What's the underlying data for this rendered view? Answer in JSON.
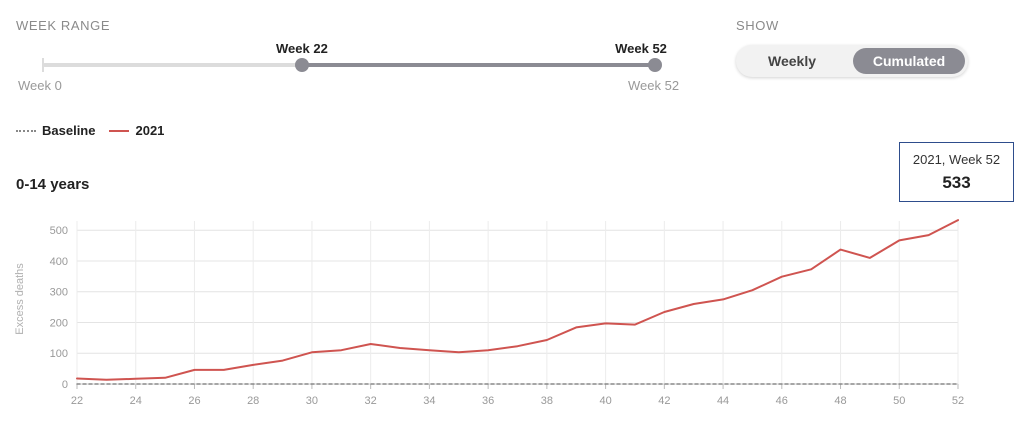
{
  "controls": {
    "week_range_label": "WEEK RANGE",
    "range_start_label": "Week 0",
    "range_end_label": "Week 52",
    "thumb_low_label": "Week 22",
    "thumb_high_label": "Week 52",
    "range_min": 0,
    "range_max": 52,
    "selected_low": 22,
    "selected_high": 52,
    "show_label": "SHOW",
    "toggle_options": [
      "Weekly",
      "Cumulated"
    ],
    "toggle_selected": "Cumulated"
  },
  "legend": {
    "items": [
      {
        "label": "Baseline",
        "style": "dotted",
        "color": "#888888"
      },
      {
        "label": "2021",
        "style": "solid",
        "color": "#cf5450"
      }
    ]
  },
  "tooltip": {
    "line1": "2021, Week 52",
    "value": "533"
  },
  "chart_data": {
    "type": "line",
    "title": "0-14 years",
    "xlabel": "",
    "ylabel": "Excess deaths",
    "xlim": [
      22,
      52
    ],
    "ylim": [
      0,
      530
    ],
    "x_ticks": [
      22,
      24,
      26,
      28,
      30,
      32,
      34,
      36,
      38,
      40,
      42,
      44,
      46,
      48,
      50,
      52
    ],
    "y_ticks": [
      0,
      100,
      200,
      300,
      400,
      500
    ],
    "grid": true,
    "series": [
      {
        "name": "2021",
        "color": "#cf5450",
        "x": [
          22,
          23,
          24,
          25,
          26,
          27,
          28,
          29,
          30,
          31,
          32,
          33,
          34,
          35,
          36,
          37,
          38,
          39,
          40,
          41,
          42,
          43,
          44,
          45,
          46,
          47,
          48,
          49,
          50,
          51,
          52
        ],
        "y": [
          18,
          14,
          17,
          20,
          46,
          46,
          62,
          76,
          103,
          110,
          130,
          117,
          110,
          103,
          110,
          123,
          143,
          184,
          197,
          193,
          234,
          260,
          275,
          305,
          349,
          373,
          437,
          410,
          467,
          484,
          533
        ]
      },
      {
        "name": "Baseline",
        "color": "#888888",
        "dashed": true,
        "x": [
          22,
          52
        ],
        "y": [
          0,
          0
        ]
      }
    ]
  }
}
